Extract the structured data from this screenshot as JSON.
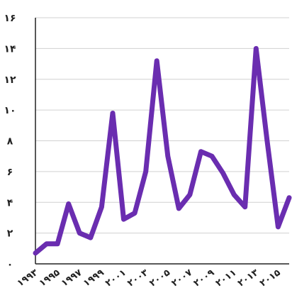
{
  "chart_data": {
    "type": "line",
    "title": "",
    "xlabel": "",
    "ylabel": "",
    "x": [
      1993,
      1994,
      1995,
      1996,
      1997,
      1998,
      1999,
      2000,
      2001,
      2002,
      2003,
      2004,
      2005,
      2006,
      2007,
      2008,
      2009,
      2010,
      2011,
      2012,
      2013,
      2014,
      2015,
      2016
    ],
    "x_tick_labels": [
      "۱۹۹۳",
      "۱۹۹۵",
      "۱۹۹۷",
      "۱۹۹۹",
      "۲۰۰۱",
      "۲۰۰۳",
      "۲۰۰۵",
      "۲۰۰۷",
      "۲۰۰۹",
      "۲۰۱۱",
      "۲۰۱۳",
      "۲۰۱۵"
    ],
    "x_tick_values": [
      1993,
      1995,
      1997,
      1999,
      2001,
      2003,
      2005,
      2007,
      2009,
      2011,
      2013,
      2015
    ],
    "y_tick_labels": [
      "۰",
      "۲",
      "۴",
      "۶",
      "۸",
      "۱۰",
      "۱۲",
      "۱۴",
      "۱۶"
    ],
    "y_tick_values": [
      0,
      2,
      4,
      6,
      8,
      10,
      12,
      14,
      16
    ],
    "ylim": [
      0,
      16
    ],
    "xlim": [
      1993,
      2016
    ],
    "grid": true,
    "series": [
      {
        "color": "#6a2db0",
        "values": [
          0.7,
          1.3,
          1.3,
          3.9,
          2.0,
          1.7,
          3.7,
          9.8,
          2.9,
          3.3,
          6.0,
          13.2,
          7.0,
          3.6,
          4.5,
          7.3,
          7.0,
          5.9,
          4.5,
          3.7,
          14.0,
          8.0,
          2.4,
          4.3
        ]
      }
    ]
  }
}
